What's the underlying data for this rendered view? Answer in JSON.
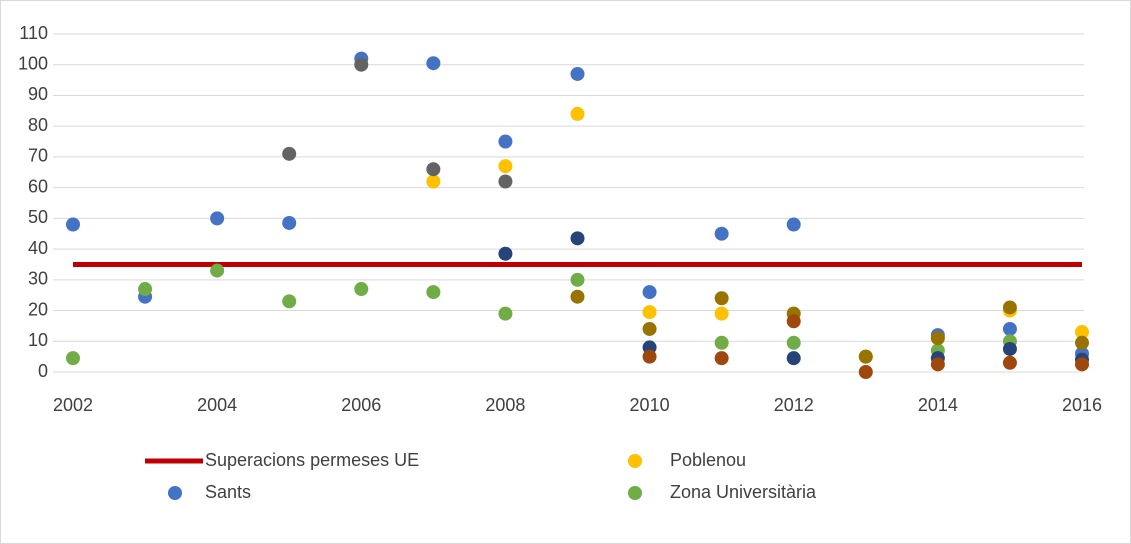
{
  "chart_data": {
    "type": "scatter",
    "xlim": [
      2002,
      2016
    ],
    "xticks": [
      2002,
      2004,
      2006,
      2008,
      2010,
      2012,
      2014,
      2016
    ],
    "ylim": [
      0,
      110
    ],
    "yticks": [
      0,
      10,
      20,
      30,
      40,
      50,
      60,
      70,
      80,
      90,
      100,
      110
    ],
    "grid": true,
    "legend": "bottom",
    "series": [
      {
        "name": "Superacions permeses UE",
        "type": "line",
        "color": "#c00000",
        "x": [
          2002,
          2016
        ],
        "values": [
          35,
          35
        ]
      },
      {
        "name": "Poblenou",
        "color": "#ffc000",
        "x": [
          2007,
          2008,
          2009,
          2010,
          2011,
          2013,
          2015,
          2016
        ],
        "values": [
          62,
          67,
          84,
          19.5,
          19,
          5,
          20,
          13
        ]
      },
      {
        "name": "Sants",
        "color": "#4472c4",
        "x": [
          2002,
          2003,
          2004,
          2005,
          2006,
          2007,
          2008,
          2009,
          2010,
          2011,
          2012,
          2014,
          2015,
          2016
        ],
        "values": [
          48,
          24.5,
          50,
          48.5,
          102,
          100.5,
          75,
          97,
          26,
          45,
          48,
          12,
          14,
          6
        ]
      },
      {
        "name": "Zona Universitària",
        "color": "#70ad47",
        "x": [
          2002,
          2003,
          2004,
          2005,
          2006,
          2007,
          2008,
          2009,
          2011,
          2012,
          2014,
          2015
        ],
        "values": [
          4.5,
          27,
          33,
          23,
          27,
          26,
          19,
          30,
          9.5,
          9.5,
          7,
          10
        ]
      },
      {
        "color": "#636363",
        "x": [
          2005,
          2006,
          2007,
          2008
        ],
        "values": [
          71,
          100,
          66,
          62
        ]
      },
      {
        "color": "#264478",
        "x": [
          2008,
          2009,
          2010,
          2012,
          2014,
          2015,
          2016
        ],
        "values": [
          38.5,
          43.5,
          8,
          4.5,
          4.5,
          7.5,
          4
        ]
      },
      {
        "color": "#997300",
        "x": [
          2009,
          2010,
          2011,
          2012,
          2013,
          2014,
          2015,
          2016
        ],
        "values": [
          24.5,
          14,
          24,
          19,
          5,
          11,
          21,
          9.5
        ]
      },
      {
        "color": "#9e480e",
        "x": [
          2010,
          2011,
          2012,
          2013,
          2014,
          2015,
          2016
        ],
        "values": [
          5,
          4.5,
          16.5,
          0,
          2.5,
          3,
          2.5
        ]
      }
    ]
  }
}
